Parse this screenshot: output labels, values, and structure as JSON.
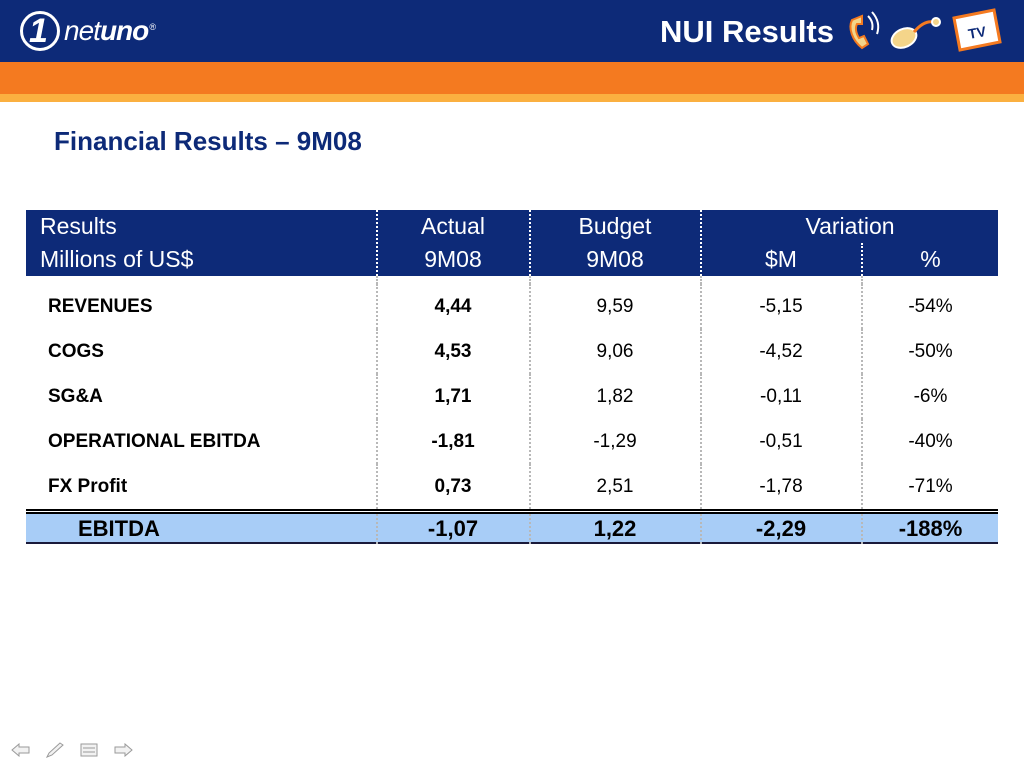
{
  "header": {
    "logo_one": "1",
    "logo_net": "net",
    "logo_uno": "uno",
    "logo_reg": "®",
    "title": "NUI Results",
    "service_icons": [
      "phone-icon",
      "internet-mouse-icon",
      "tv-icon"
    ],
    "tv_label": "TV"
  },
  "colors": {
    "navy": "#0d2a78",
    "orange": "#f47a20",
    "light_orange": "#fbb040",
    "total_row_blue": "#a8cdf7"
  },
  "page_title": "Financial Results – 9M08",
  "table": {
    "headers": {
      "results": "Results",
      "results_sub": "Millions of US$",
      "actual": "Actual",
      "actual_sub": "9M08",
      "budget": "Budget",
      "budget_sub": "9M08",
      "variation": "Variation",
      "var_m": "$M",
      "var_pct": "%"
    },
    "rows": [
      {
        "label": "REVENUES",
        "actual": "4,44",
        "budget": "9,59",
        "var_m": "-5,15",
        "var_pct": "-54%"
      },
      {
        "label": "COGS",
        "actual": "4,53",
        "budget": "9,06",
        "var_m": "-4,52",
        "var_pct": "-50%"
      },
      {
        "label": "SG&A",
        "actual": "1,71",
        "budget": "1,82",
        "var_m": "-0,11",
        "var_pct": "-6%"
      },
      {
        "label": "OPERATIONAL EBITDA",
        "actual": "-1,81",
        "budget": "-1,29",
        "var_m": "-0,51",
        "var_pct": "-40%"
      },
      {
        "label": "FX Profit",
        "actual": "0,73",
        "budget": "2,51",
        "var_m": "-1,78",
        "var_pct": "-71%"
      }
    ],
    "total": {
      "label": "EBITDA",
      "actual": "-1,07",
      "budget": "1,22",
      "var_m": "-2,29",
      "var_pct": "-188%"
    }
  },
  "nav": [
    "back-arrow-icon",
    "pen-icon",
    "menu-icon",
    "forward-arrow-icon"
  ]
}
